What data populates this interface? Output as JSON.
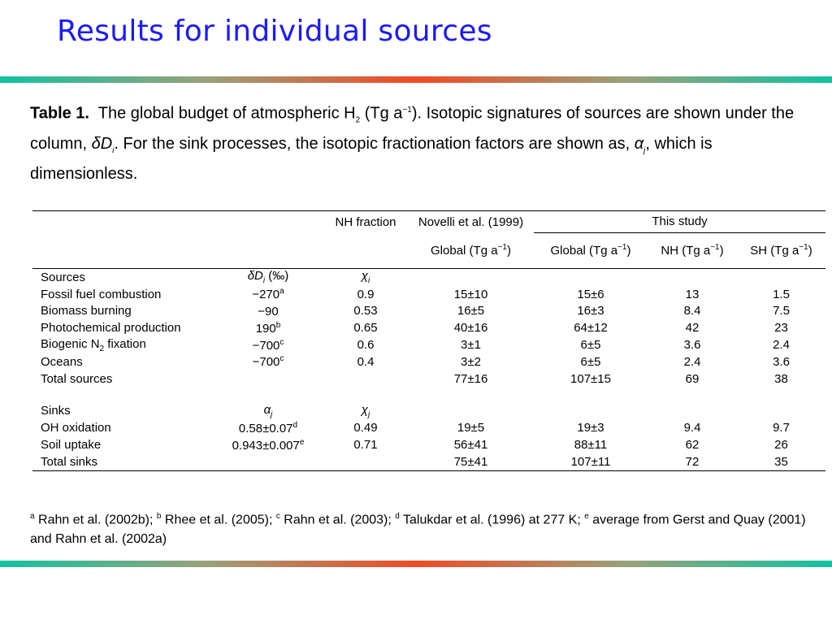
{
  "slide": {
    "title": "Results for individual sources"
  },
  "caption": {
    "table_label": "Table 1.",
    "p1": "The global budget of atmospheric H",
    "h2_sub": "2",
    "p2": "(Tg a",
    "p2_sup": "−1",
    "p3": "). Isotopic signatures of sources are shown under the column,",
    "deltaD": "δD",
    "deltaD_sub": "i",
    "p4": ". For the sink processes, the isotopic fractionation factors are shown as,",
    "alpha": "α",
    "alpha_sub": "j",
    "p5": ", which is dimensionless."
  },
  "table": {
    "header": {
      "nh_fraction": "NH fraction",
      "novelli": "Novelli et al. (1999)",
      "this_study": "This study",
      "global_tg": "Global (Tg a",
      "nh_tg": "NH (Tg a",
      "sh_tg": "SH (Tg a",
      "unit_sup": "−1",
      "close": ")"
    },
    "sources": {
      "label": "Sources",
      "col_symbol": "δD",
      "col_symbol_sub": "i",
      "col_unit": "(‰)",
      "chi": "χ",
      "chi_sub": "i",
      "rows": [
        {
          "name": "Fossil fuel combustion",
          "value": "−270",
          "sup": "a",
          "frac": "0.9",
          "novelli": "15±10",
          "global": "15±6",
          "nh": "13",
          "sh": "1.5"
        },
        {
          "name": "Biomass burning",
          "value": "−90",
          "sup": "",
          "frac": "0.53",
          "novelli": "16±5",
          "global": "16±3",
          "nh": "8.4",
          "sh": "7.5"
        },
        {
          "name": "Photochemical production",
          "value": "190",
          "sup": "b",
          "frac": "0.65",
          "novelli": "40±16",
          "global": "64±12",
          "nh": "42",
          "sh": "23"
        },
        {
          "name": "Biogenic N",
          "name_sub": "2",
          "name_after": " fixation",
          "value": "−700",
          "sup": "c",
          "frac": "0.6",
          "novelli": "3±1",
          "global": "6±5",
          "nh": "3.6",
          "sh": "2.4"
        },
        {
          "name": "Oceans",
          "value": "−700",
          "sup": "c",
          "frac": "0.4",
          "novelli": "3±2",
          "global": "6±5",
          "nh": "2.4",
          "sh": "3.6"
        }
      ],
      "total": {
        "name": "Total sources",
        "novelli": "77±16",
        "global": "107±15",
        "nh": "69",
        "sh": "38"
      }
    },
    "sinks": {
      "label": "Sinks",
      "col_symbol": "α",
      "col_symbol_sub": "j",
      "chi": "χ",
      "chi_sub": "j",
      "rows": [
        {
          "name": "OH oxidation",
          "value": "0.58±0.07",
          "sup": "d",
          "frac": "0.49",
          "novelli": "19±5",
          "global": "19±3",
          "nh": "9.4",
          "sh": "9.7"
        },
        {
          "name": "Soil uptake",
          "value": "0.943±0.007",
          "sup": "e",
          "frac": "0.71",
          "novelli": "56±41",
          "global": "88±11",
          "nh": "62",
          "sh": "26"
        }
      ],
      "total": {
        "name": "Total sinks",
        "novelli": "75±41",
        "global": "107±11",
        "nh": "72",
        "sh": "35"
      }
    }
  },
  "footnote": {
    "a_mark": "a",
    "a_text": " Rahn et al. (2002b); ",
    "b_mark": "b",
    "b_text": " Rhee et al. (2005); ",
    "c_mark": "c",
    "c_text": " Rahn et al. (2003); ",
    "d_mark": "d",
    "d_text": " Talukdar et al. (1996) at 277 K; ",
    "e_mark": "e",
    "e_text": " average from Gerst and Quay (2001) and Rahn et al. (2002a)"
  },
  "colors": {
    "title": "#1a1aff",
    "rule_teal": "#12c2a0",
    "rule_red": "#f04a24"
  }
}
